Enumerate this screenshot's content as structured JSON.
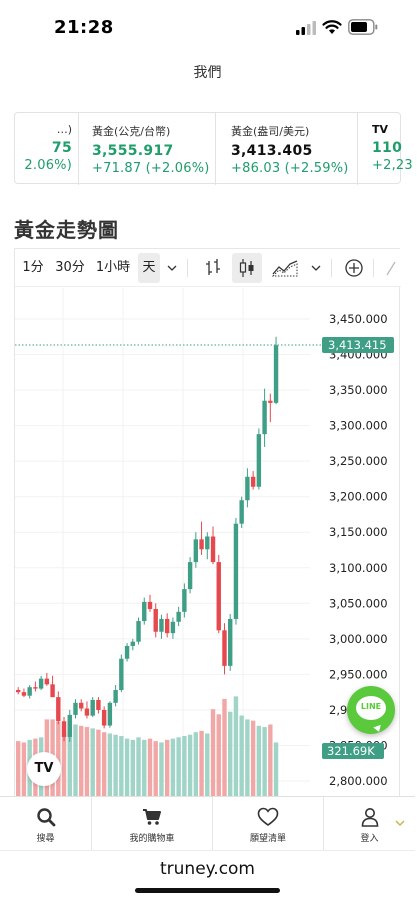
{
  "status_bar": {
    "time": "21:28",
    "icons": [
      "signal-icon",
      "wifi-icon",
      "battery-icon"
    ]
  },
  "site_title": "我們",
  "quotes": [
    {
      "name": "…)",
      "price": "75",
      "change": "2.06%)"
    },
    {
      "name": "黃金(公克/台幣)",
      "price": "3,555.917",
      "change": "+71.87 (+2.06%)"
    },
    {
      "name": "黃金(盎司/美元)",
      "price": "3,413.405",
      "change": "+86.03 (+2.59%)"
    },
    {
      "name": "TV",
      "price": "110",
      "change": "+2,23"
    }
  ],
  "section_title": "黃金走勢圖",
  "toolbar": {
    "intervals": [
      "1分",
      "30分",
      "1小時",
      "天"
    ],
    "active_interval": "天",
    "icons": [
      "chevron-down-icon",
      "bar-chart-icon",
      "candlestick-icon",
      "area-chart-icon",
      "chevron-down-icon",
      "add-indicator-icon",
      "drawing-icon"
    ]
  },
  "colors": {
    "up": "#3e9f86",
    "down": "#e5484d",
    "vol_up": "#9fd4c7",
    "vol_down": "#f2a7a7",
    "label_bg": "#3e9f86"
  },
  "chart_data": {
    "type": "candlestick",
    "title": "",
    "xlabel": "",
    "ylabel": "",
    "ylim": [
      2786,
      3480
    ],
    "y_ticks": [
      "3,450.000",
      "3,400.000",
      "3,350.000",
      "3,300.000",
      "3,250.000",
      "3,200.000",
      "3,150.000",
      "3,100.000",
      "3,050.000",
      "3,000.000",
      "2,950.000",
      "2,900.000",
      "2,850.000",
      "2,800.000"
    ],
    "last_price": 3413.415,
    "last_price_label": "3,413.415",
    "volume_label": "321.69K",
    "candles": [
      [
        2928,
        2932,
        2922,
        2925
      ],
      [
        2925,
        2930,
        2918,
        2920
      ],
      [
        2920,
        2935,
        2916,
        2932
      ],
      [
        2932,
        2940,
        2926,
        2930
      ],
      [
        2930,
        2948,
        2928,
        2944
      ],
      [
        2944,
        2952,
        2934,
        2936
      ],
      [
        2936,
        2948,
        2918,
        2918
      ],
      [
        2918,
        2926,
        2880,
        2884
      ],
      [
        2884,
        2890,
        2856,
        2862
      ],
      [
        2862,
        2900,
        2855,
        2893
      ],
      [
        2893,
        2915,
        2888,
        2910
      ],
      [
        2910,
        2915,
        2898,
        2902
      ],
      [
        2902,
        2912,
        2888,
        2892
      ],
      [
        2892,
        2918,
        2890,
        2914
      ],
      [
        2914,
        2918,
        2895,
        2900
      ],
      [
        2900,
        2905,
        2874,
        2878
      ],
      [
        2878,
        2912,
        2875,
        2910
      ],
      [
        2910,
        2935,
        2905,
        2928
      ],
      [
        2928,
        2978,
        2925,
        2972
      ],
      [
        2972,
        2994,
        2968,
        2990
      ],
      [
        2990,
        3000,
        2984,
        2996
      ],
      [
        2996,
        3030,
        2992,
        3025
      ],
      [
        3025,
        3058,
        3020,
        3052
      ],
      [
        3052,
        3062,
        3038,
        3042
      ],
      [
        3042,
        3050,
        3002,
        3010
      ],
      [
        3010,
        3034,
        3000,
        3028
      ],
      [
        3028,
        3036,
        3002,
        3008
      ],
      [
        3008,
        3030,
        3000,
        3024
      ],
      [
        3024,
        3045,
        3018,
        3038
      ],
      [
        3038,
        3078,
        3030,
        3070
      ],
      [
        3070,
        3115,
        3064,
        3108
      ],
      [
        3108,
        3150,
        3100,
        3140
      ],
      [
        3140,
        3165,
        3118,
        3126
      ],
      [
        3126,
        3150,
        3112,
        3144
      ],
      [
        3144,
        3158,
        3105,
        3108
      ],
      [
        3108,
        3118,
        3008,
        3012
      ],
      [
        3012,
        3022,
        2950,
        2962
      ],
      [
        2962,
        3035,
        2955,
        3028
      ],
      [
        3028,
        3170,
        3020,
        3162
      ],
      [
        3162,
        3200,
        3156,
        3195
      ],
      [
        3195,
        3240,
        3185,
        3228
      ],
      [
        3228,
        3236,
        3210,
        3214
      ],
      [
        3214,
        3296,
        3210,
        3288
      ],
      [
        3288,
        3352,
        3270,
        3335
      ],
      [
        3335,
        3345,
        3305,
        3332
      ],
      [
        3332,
        3425,
        3330,
        3413
      ]
    ],
    "volumes": [
      53,
      52,
      54,
      55,
      56,
      70,
      70,
      68,
      60,
      67,
      66,
      65,
      64,
      63,
      62,
      60,
      59,
      58,
      57,
      55,
      54,
      56,
      54,
      55,
      53,
      52,
      54,
      55,
      56,
      57,
      58,
      60,
      61,
      59,
      78,
      74,
      86,
      76,
      88,
      73,
      70,
      69,
      65,
      64,
      66,
      52
    ]
  },
  "tabs": [
    {
      "label": "搜尋",
      "icon": "search-icon"
    },
    {
      "label": "我的購物車",
      "icon": "cart-icon"
    },
    {
      "label": "願望清單",
      "icon": "heart-icon"
    },
    {
      "label": "登入",
      "icon": "user-icon"
    }
  ],
  "url": "truney.com",
  "line_button": {
    "label": "LINE"
  },
  "tv_badge": {
    "label": "TV"
  }
}
